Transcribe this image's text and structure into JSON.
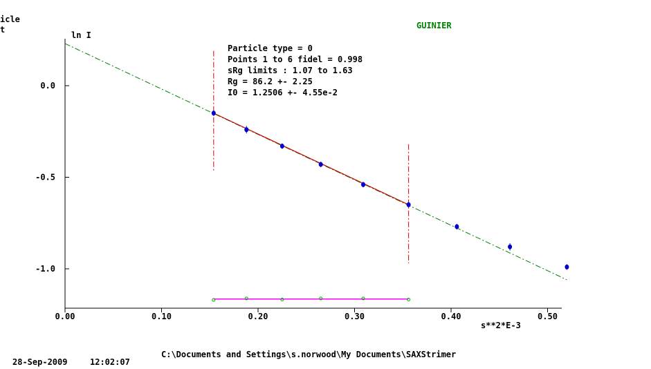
{
  "chart_data": {
    "type": "scatter",
    "title": "GUINIER",
    "cut_off_top_left": [
      "icle",
      "t"
    ],
    "ylabel": "ln I",
    "xlabel": "s**2*E-3",
    "xlim": [
      0.0,
      0.52
    ],
    "ylim": [
      -1.2,
      0.25
    ],
    "x_ticks": [
      "0.00",
      "0.10",
      "0.20",
      "0.30",
      "0.40",
      "0.50"
    ],
    "y_ticks": [
      "0.0",
      "-0.5",
      "-1.0"
    ],
    "grid": false,
    "annotation_lines": [
      "Particle type = 0",
      "Points 1 to 6 fidel = 0.998",
      "sRg limits : 1.07 to 1.63",
      "Rg       = 86.2  +- 2.25",
      "I0       = 1.2506  +- 4.55e-2"
    ],
    "series": [
      {
        "x": [
          0.154,
          0.188,
          0.225,
          0.265,
          0.309,
          0.356,
          0.406,
          0.461,
          0.52
        ],
        "y": [
          -0.15,
          -0.24,
          -0.33,
          -0.43,
          -0.54,
          -0.65,
          -0.77,
          -0.88,
          -0.99
        ],
        "err": [
          0.015,
          0.02,
          0.015,
          0.015,
          0.015,
          0.015,
          0.015,
          0.02,
          0.015
        ],
        "color": "#0000cc"
      }
    ],
    "fit_line": {
      "x": [
        0.154,
        0.356
      ],
      "y": [
        -0.15,
        -0.65
      ],
      "color": "#cc0000"
    },
    "extrapolation_line": {
      "x": [
        0.0,
        0.52
      ],
      "y": [
        0.23,
        -1.06
      ],
      "color": "#008000"
    },
    "limit_markers": {
      "x": [
        0.154,
        0.356
      ],
      "y_ranges": [
        [
          0.19,
          -0.47
        ],
        [
          -0.32,
          -0.97
        ]
      ],
      "color": "#cc0000"
    },
    "residuals": {
      "x": [
        0.154,
        0.188,
        0.225,
        0.265,
        0.309,
        0.356
      ],
      "y": [
        -1.17,
        -1.162,
        -1.168,
        -1.162,
        -1.162,
        -1.168
      ],
      "baseline_y": -1.165,
      "color": "#00aa00",
      "baseline_color": "#ff00ff"
    }
  },
  "footer": {
    "path": "C:\\Documents and Settings\\s.norwood\\My Documents\\SAXStrimer",
    "date": "28-Sep-2009",
    "time": "12:02:07"
  }
}
